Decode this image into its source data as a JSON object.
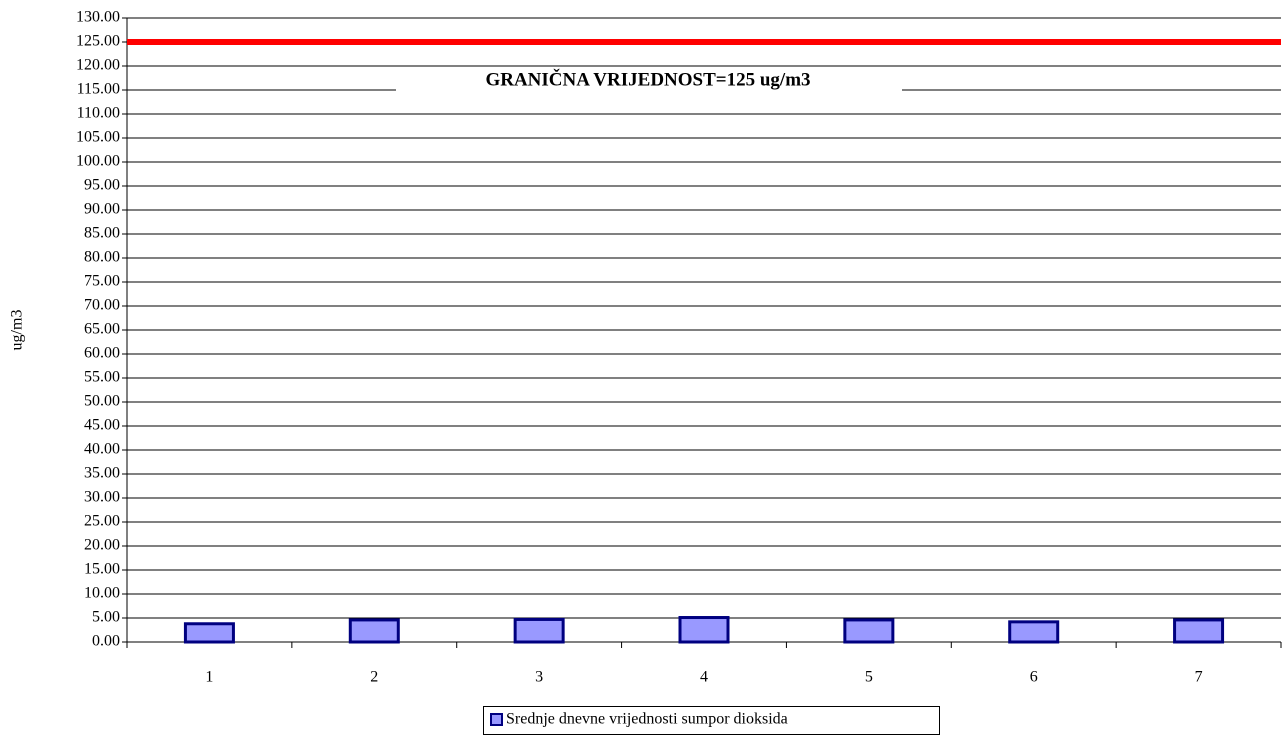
{
  "chart_data": {
    "type": "bar",
    "ylabel": "ug/m3",
    "categories": [
      "1",
      "2",
      "3",
      "4",
      "5",
      "6",
      "7"
    ],
    "series": [
      {
        "name": "Srednje dnevne vrijednosti sumpor dioksida",
        "color": "#9999ff",
        "edgecolor": "#000080",
        "values": [
          3.8,
          4.6,
          4.7,
          5.1,
          4.6,
          4.2,
          4.6
        ]
      }
    ],
    "threshold": {
      "value": 125,
      "color": "#ff0000",
      "label": "GRANIČNA VRIJEDNOST=125 ug/m3"
    },
    "ylim": [
      0,
      130
    ],
    "yticks": [
      {
        "value": 0,
        "label": "0.00"
      },
      {
        "value": 5,
        "label": "5.00"
      },
      {
        "value": 10,
        "label": "10.00"
      },
      {
        "value": 15,
        "label": "15.00"
      },
      {
        "value": 20,
        "label": "20.00"
      },
      {
        "value": 25,
        "label": "25.00"
      },
      {
        "value": 30,
        "label": "30.00"
      },
      {
        "value": 35,
        "label": "35.00"
      },
      {
        "value": 40,
        "label": "40.00"
      },
      {
        "value": 45,
        "label": "45.00"
      },
      {
        "value": 50,
        "label": "50.00"
      },
      {
        "value": 55,
        "label": "55.00"
      },
      {
        "value": 60,
        "label": "60.00"
      },
      {
        "value": 65,
        "label": "65.00"
      },
      {
        "value": 70,
        "label": "70.00"
      },
      {
        "value": 75,
        "label": "75.00"
      },
      {
        "value": 80,
        "label": "80.00"
      },
      {
        "value": 85,
        "label": "85.00"
      },
      {
        "value": 90,
        "label": "90.00"
      },
      {
        "value": 95,
        "label": "95.00"
      },
      {
        "value": 100,
        "label": "100.00"
      },
      {
        "value": 105,
        "label": "105.00"
      },
      {
        "value": 110,
        "label": "110.00"
      },
      {
        "value": 115,
        "label": "115.00"
      },
      {
        "value": 120,
        "label": "120.00"
      },
      {
        "value": 125,
        "label": "125.00"
      },
      {
        "value": 130,
        "label": "130.00"
      }
    ],
    "grid": true,
    "legend": "bottom"
  }
}
